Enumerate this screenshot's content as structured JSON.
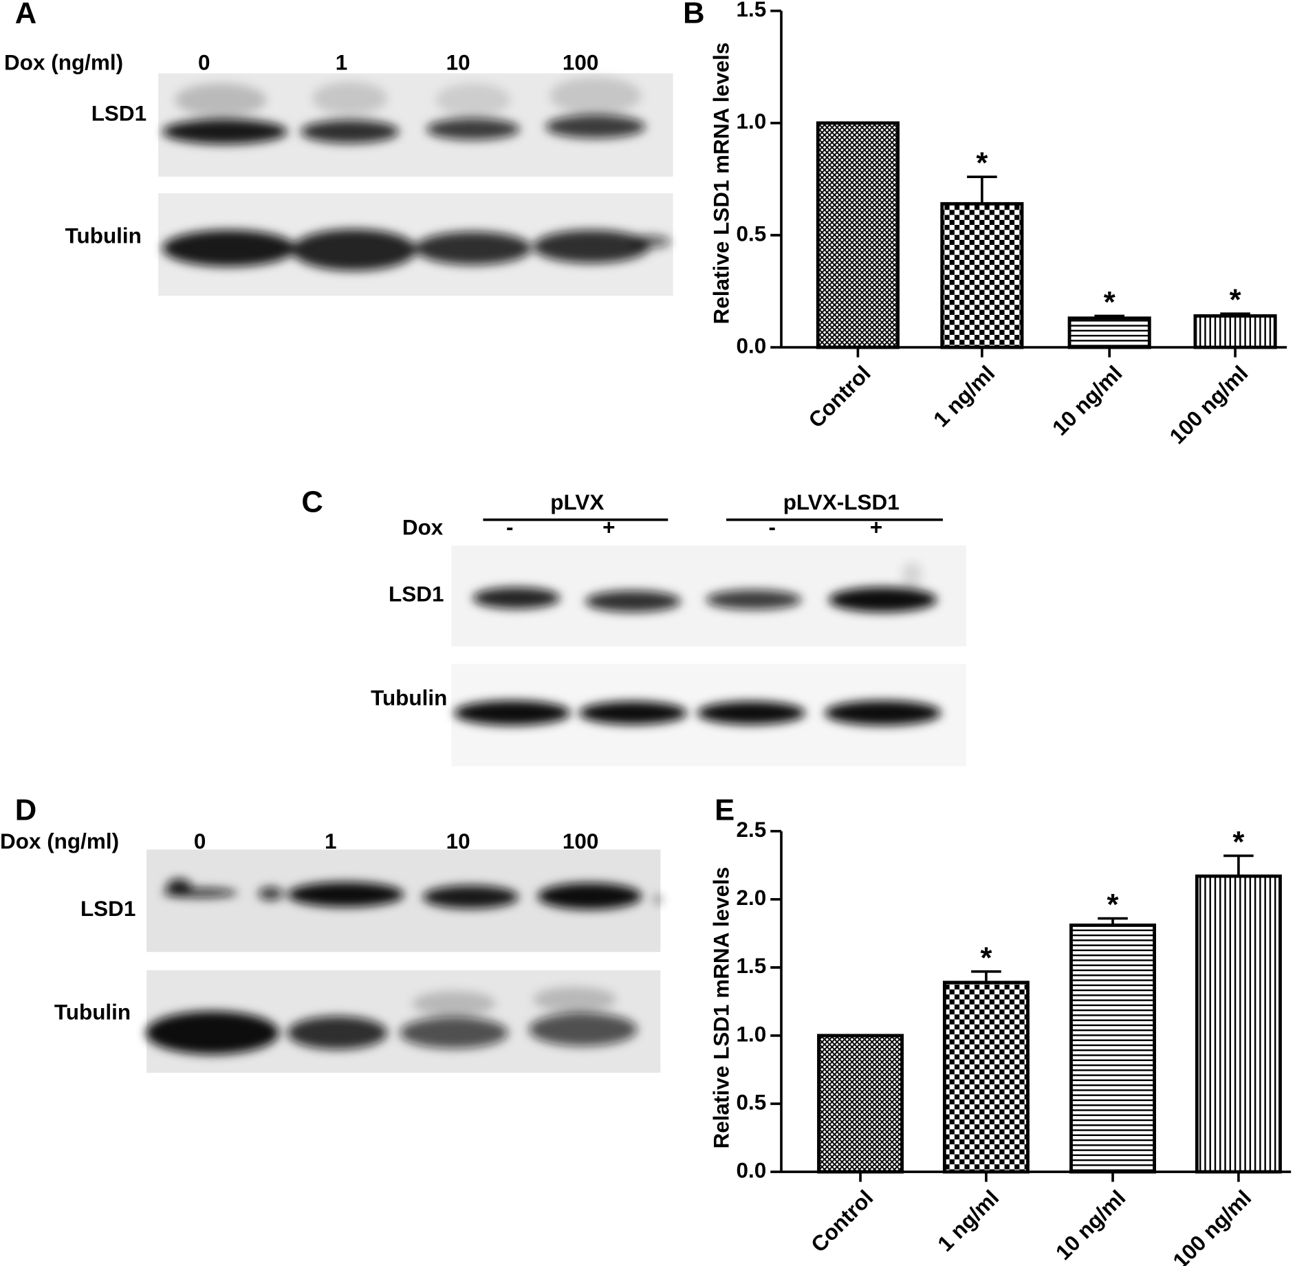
{
  "panels": {
    "A": {
      "label": "A",
      "dox_label": "Dox (ng/ml)",
      "lanes": [
        "0",
        "1",
        "10",
        "100"
      ],
      "rows": [
        "LSD1",
        "Tubulin"
      ]
    },
    "C": {
      "label": "C",
      "groups": [
        "pLVX",
        "pLVX-LSD1"
      ],
      "dox_label": "Dox",
      "lanes": [
        "-",
        "+",
        "-",
        "+"
      ],
      "rows": [
        "LSD1",
        "Tubulin"
      ]
    },
    "D": {
      "label": "D",
      "dox_label": "Dox (ng/ml)",
      "lanes": [
        "0",
        "1",
        "10",
        "100"
      ],
      "rows": [
        "LSD1",
        "Tubulin"
      ]
    }
  },
  "chart_data": [
    {
      "type": "bar",
      "panel_label": "B",
      "ylabel": "Relative LSD1 mRNA levels",
      "categories": [
        "Control",
        "1 ng/ml",
        "10 ng/ml",
        "100 ng/ml"
      ],
      "values": [
        1.0,
        0.64,
        0.13,
        0.14
      ],
      "errors": [
        null,
        0.12,
        0.01,
        0.01
      ],
      "annotations": [
        null,
        "*",
        "*",
        "*"
      ],
      "patterns": [
        "crosshatch",
        "checker",
        "hlines",
        "vlines"
      ],
      "color": "#000000",
      "ylim": [
        0,
        1.5
      ],
      "yticks": [
        {
          "value": 0,
          "label": "0.0"
        },
        0.5,
        {
          "value": 1,
          "label": "1.0"
        },
        1.5
      ]
    },
    {
      "type": "bar",
      "panel_label": "E",
      "ylabel": "Relative LSD1 mRNA levels",
      "categories": [
        "Control",
        "1 ng/ml",
        "10 ng/ml",
        "100 ng/ml"
      ],
      "values": [
        1.0,
        1.39,
        1.81,
        2.17
      ],
      "errors": [
        null,
        0.08,
        0.05,
        0.15
      ],
      "annotations": [
        null,
        "*",
        "*",
        "*"
      ],
      "patterns": [
        "crosshatch",
        "checker",
        "hlines",
        "vlines"
      ],
      "color": "#000000",
      "ylim": [
        0,
        2.5
      ],
      "yticks": [
        {
          "value": 0,
          "label": "0.0"
        },
        0.5,
        {
          "value": 1,
          "label": "1.0"
        },
        1.5,
        {
          "value": 2,
          "label": "2.0"
        },
        2.5
      ]
    }
  ]
}
